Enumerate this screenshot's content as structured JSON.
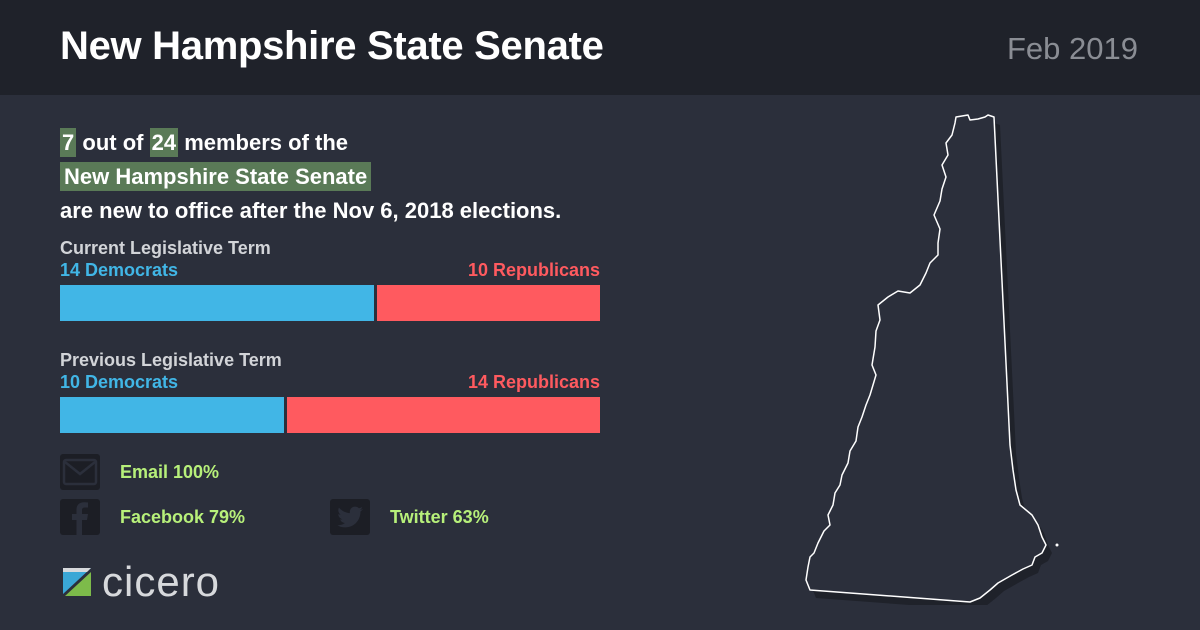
{
  "header": {
    "title": "New Hampshire State Senate",
    "date": "Feb 2019"
  },
  "intro": {
    "new_count": "7",
    "out_of": "out of",
    "total": "24",
    "members_of_the": "members of the",
    "body_name": "New Hampshire State Senate",
    "suffix": "are new to office after the Nov 6, 2018 elections."
  },
  "current_term": {
    "label": "Current Legislative Term",
    "dem_label": "14 Democrats",
    "rep_label": "10 Republicans",
    "dem": 14,
    "rep": 10
  },
  "previous_term": {
    "label": "Previous Legislative Term",
    "dem_label": "10 Democrats",
    "rep_label": "14 Republicans",
    "dem": 10,
    "rep": 14
  },
  "contact": {
    "email": {
      "icon": "envelope-icon",
      "label": "Email 100%"
    },
    "facebook": {
      "icon": "facebook-icon",
      "label": "Facebook 79%"
    },
    "twitter": {
      "icon": "twitter-icon",
      "label": "Twitter 63%"
    }
  },
  "logo": {
    "wordmark": "cicero"
  },
  "colors": {
    "democrat": "#41b6e6",
    "republican": "#ff5a5f",
    "highlight": "#5a7a57",
    "contact_text": "#b7f07a"
  }
}
